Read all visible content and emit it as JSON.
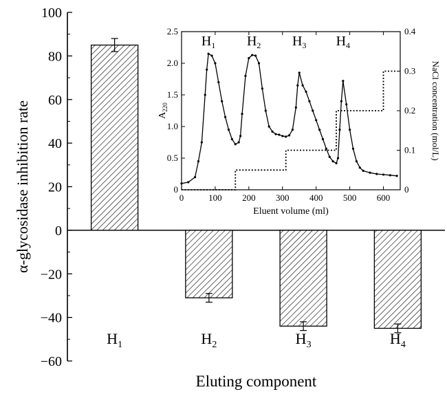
{
  "chart_data": [
    {
      "type": "bar",
      "categories": [
        "H1",
        "H2",
        "H3",
        "H4"
      ],
      "category_labels": [
        {
          "base": "H",
          "sub": "1"
        },
        {
          "base": "H",
          "sub": "2"
        },
        {
          "base": "H",
          "sub": "3"
        },
        {
          "base": "H",
          "sub": "4"
        }
      ],
      "values": [
        85,
        -31,
        -44,
        -45
      ],
      "errors": [
        3,
        2,
        2,
        2
      ],
      "fill": "hatched",
      "xlabel": "Eluting component",
      "ylabel": "α-glycosidase inhibition rate",
      "ylim": [
        -60,
        100
      ],
      "yticks": [
        -60,
        -40,
        -20,
        0,
        20,
        40,
        60,
        80,
        100
      ],
      "ytick_labels": [
        "−60",
        "−40",
        "−20",
        "0",
        "20",
        "40",
        "60",
        "80",
        "100"
      ],
      "grid": false,
      "legend": "none"
    },
    {
      "type": "line",
      "role": "inset",
      "xlabel": "Eluent volume (ml)",
      "ylabel": {
        "base": "A",
        "sub": "220"
      },
      "y2label": "NaCl concentration (mol/L)",
      "xlim": [
        0,
        650
      ],
      "ylim": [
        0,
        2.5
      ],
      "y2lim": [
        0,
        0.4
      ],
      "xticks": [
        0,
        100,
        200,
        300,
        400,
        500,
        600
      ],
      "yticks": [
        0,
        0.5,
        1.0,
        1.5,
        2.0,
        2.5
      ],
      "ytick_labels": [
        "0",
        "0.5",
        "1.0",
        "1.5",
        "2.0",
        "2.5"
      ],
      "y2ticks": [
        0,
        0.1,
        0.2,
        0.3,
        0.4
      ],
      "y2tick_labels": [
        "0",
        "0.1",
        "0.2",
        "0.3",
        "0.4"
      ],
      "peak_labels": [
        {
          "base": "H",
          "sub": "1",
          "x": 80
        },
        {
          "base": "H",
          "sub": "2",
          "x": 215
        },
        {
          "base": "H",
          "sub": "3",
          "x": 350
        },
        {
          "base": "H",
          "sub": "4",
          "x": 480
        }
      ],
      "series": [
        {
          "axis": "left",
          "style": "solid-with-markers",
          "x": [
            0,
            20,
            40,
            50,
            60,
            70,
            75,
            80,
            90,
            100,
            110,
            120,
            130,
            140,
            150,
            160,
            170,
            175,
            180,
            190,
            200,
            210,
            220,
            230,
            240,
            250,
            260,
            270,
            280,
            290,
            300,
            310,
            320,
            330,
            340,
            345,
            350,
            360,
            370,
            380,
            390,
            400,
            410,
            420,
            430,
            440,
            450,
            460,
            465,
            470,
            475,
            480,
            490,
            500,
            510,
            520,
            530,
            540,
            560,
            580,
            600,
            620,
            640
          ],
          "y": [
            0.1,
            0.12,
            0.2,
            0.45,
            0.75,
            1.5,
            1.9,
            2.15,
            2.12,
            2.0,
            1.7,
            1.4,
            1.15,
            0.95,
            0.8,
            0.72,
            0.75,
            0.85,
            1.2,
            1.8,
            2.08,
            2.13,
            2.12,
            2.0,
            1.6,
            1.25,
            1.0,
            0.92,
            0.88,
            0.87,
            0.85,
            0.84,
            0.86,
            0.95,
            1.3,
            1.65,
            1.85,
            1.65,
            1.55,
            1.4,
            1.25,
            1.1,
            0.95,
            0.8,
            0.65,
            0.52,
            0.45,
            0.42,
            0.5,
            0.95,
            1.4,
            1.72,
            1.35,
            0.95,
            0.65,
            0.45,
            0.35,
            0.3,
            0.27,
            0.25,
            0.24,
            0.23,
            0.22
          ]
        },
        {
          "axis": "right",
          "style": "dotted-step",
          "x": [
            0,
            160,
            160,
            310,
            310,
            460,
            460,
            600,
            600,
            640
          ],
          "y": [
            0,
            0,
            0.05,
            0.05,
            0.1,
            0.1,
            0.2,
            0.2,
            0.3,
            0.3
          ]
        }
      ]
    }
  ]
}
